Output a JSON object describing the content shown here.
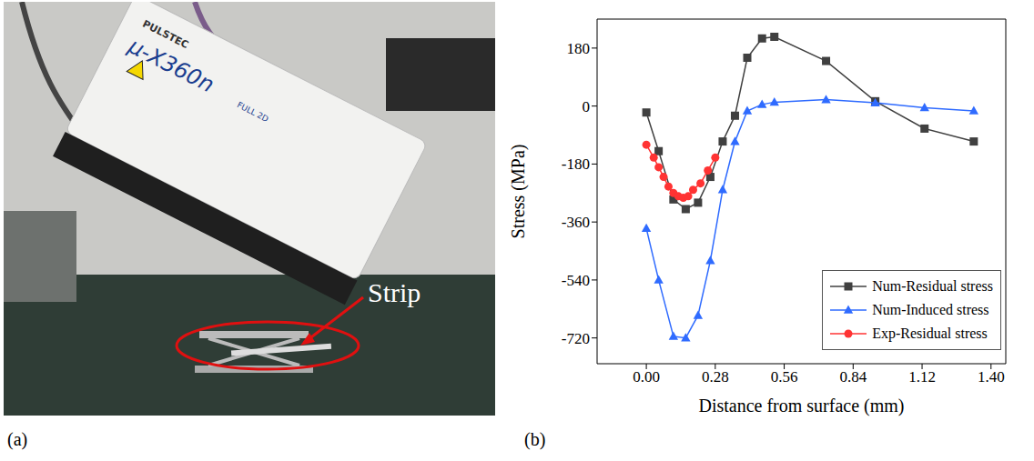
{
  "panel_a": {
    "label": "(a)",
    "device_text": [
      "PULSTEC",
      "μ-X360n",
      "FULL 2D"
    ],
    "annotation": "Strip"
  },
  "panel_b": {
    "label": "(b)"
  },
  "chart_data": {
    "type": "line",
    "x_label": "Distance from surface (mm)",
    "y_label": "Stress (MPa)",
    "xlim": [
      -0.2,
      1.46
    ],
    "xticks": [
      {
        "value": 0,
        "label": "0.00"
      },
      0.28,
      0.56,
      0.84,
      1.12,
      {
        "value": 1.4,
        "label": "1.40"
      }
    ],
    "ylim": [
      -800,
      270
    ],
    "yticks": [
      -720,
      -540,
      -360,
      -180,
      0,
      180
    ],
    "grid": false,
    "legend": "lower right",
    "series": [
      {
        "name": "Num-Residual stress",
        "color": "#404040",
        "marker": "square",
        "x": [
          0,
          0.05,
          0.11,
          0.16,
          0.21,
          0.26,
          0.31,
          0.36,
          0.41,
          0.47,
          0.52,
          0.73,
          0.93,
          1.13,
          1.33
        ],
        "values": [
          -20,
          -140,
          -290,
          -320,
          -300,
          -220,
          -110,
          -30,
          150,
          210,
          215,
          140,
          15,
          -70,
          -110
        ]
      },
      {
        "name": "Num-Induced stress",
        "color": "#2f6bff",
        "marker": "triangle",
        "x": [
          0,
          0.05,
          0.11,
          0.16,
          0.21,
          0.26,
          0.31,
          0.36,
          0.41,
          0.47,
          0.52,
          0.73,
          0.93,
          1.13,
          1.33
        ],
        "values": [
          -380,
          -540,
          -715,
          -720,
          -650,
          -480,
          -260,
          -110,
          -15,
          5,
          12,
          20,
          10,
          -5,
          -15
        ]
      },
      {
        "name": "Exp-Residual stress",
        "color": "#ff3333",
        "marker": "circle",
        "x": [
          0,
          0.03,
          0.05,
          0.07,
          0.09,
          0.11,
          0.13,
          0.15,
          0.17,
          0.19,
          0.22,
          0.25,
          0.28
        ],
        "values": [
          -120,
          -160,
          -190,
          -220,
          -250,
          -270,
          -280,
          -285,
          -280,
          -260,
          -240,
          -200,
          -160
        ]
      }
    ]
  }
}
